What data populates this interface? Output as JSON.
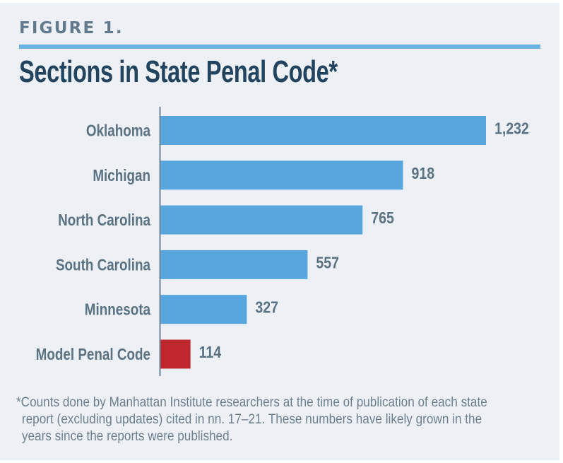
{
  "figure_label": "FIGURE 1.",
  "colors": {
    "background": "#edf1f6",
    "rule": "#69b1e4",
    "title": "#23445f",
    "label": "#5b7283",
    "bar_default": "#58a6de",
    "bar_highlight": "#c1272f",
    "axis": "#6e8595"
  },
  "chart_data": {
    "type": "bar",
    "orientation": "horizontal",
    "title": "Sections in State Penal Code*",
    "xlabel": "",
    "ylabel": "",
    "categories": [
      "Oklahoma",
      "Michigan",
      "North Carolina",
      "South Carolina",
      "Minnesota",
      "Model Penal Code"
    ],
    "values": [
      1232,
      918,
      765,
      557,
      327,
      114
    ],
    "value_labels": [
      "1,232",
      "918",
      "765",
      "557",
      "327",
      "114"
    ],
    "highlight": [
      "Model Penal Code"
    ],
    "xlim": [
      0,
      1232
    ],
    "grid": false,
    "legend": "none"
  },
  "footnote": {
    "lines": [
      "*Counts done by Manhattan Institute researchers at the time of publication of each state",
      "report (excluding updates) cited in nn. 17–21. These numbers have likely grown in the",
      "years since the reports were published."
    ]
  }
}
